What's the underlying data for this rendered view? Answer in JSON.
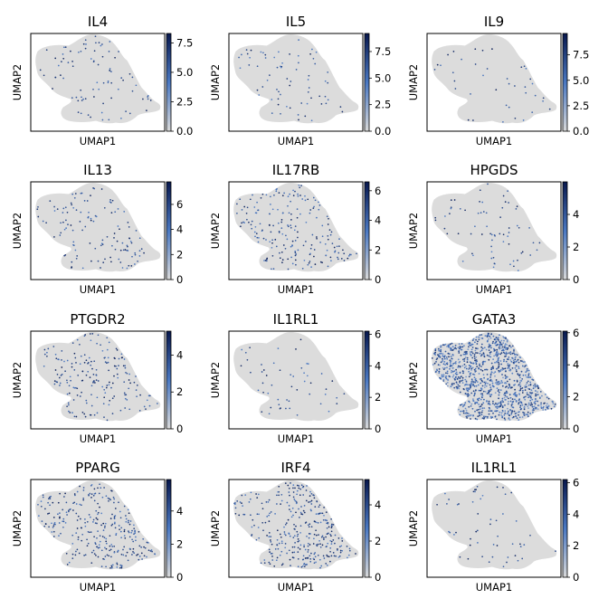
{
  "figure": {
    "background": "#ffffff",
    "colormap": {
      "low": "#d9d9d9",
      "mid": "#4a78c2",
      "high": "#07174d"
    },
    "base_color": "#dcdcdc"
  },
  "chart_data": [
    {
      "type": "scatter",
      "title": "IL4",
      "xlabel": "UMAP1",
      "ylabel": "UMAP2",
      "colorbar": {
        "ticks": [
          "0.0",
          "2.5",
          "5.0",
          "7.5"
        ],
        "tick_values": [
          0,
          2.5,
          5,
          7.5
        ],
        "max": 8.3
      },
      "expression_pattern": "sparse",
      "hotspot": "right-tip",
      "density": 0.45
    },
    {
      "type": "scatter",
      "title": "IL5",
      "xlabel": "UMAP1",
      "ylabel": "UMAP2",
      "colorbar": {
        "ticks": [
          "0.0",
          "2.5",
          "5.0",
          "7.5"
        ],
        "tick_values": [
          0,
          2.5,
          5,
          7.5
        ],
        "max": 9.2
      },
      "expression_pattern": "sparse",
      "hotspot": "right-tip",
      "density": 0.35
    },
    {
      "type": "scatter",
      "title": "IL9",
      "xlabel": "UMAP1",
      "ylabel": "UMAP2",
      "colorbar": {
        "ticks": [
          "0.0",
          "2.5",
          "5.0",
          "7.5"
        ],
        "tick_values": [
          0,
          2.5,
          5,
          7.5
        ],
        "max": 9.6
      },
      "expression_pattern": "sparse",
      "hotspot": "right-tip",
      "density": 0.2
    },
    {
      "type": "scatter",
      "title": "IL13",
      "xlabel": "UMAP1",
      "ylabel": "UMAP2",
      "colorbar": {
        "ticks": [
          "0",
          "2",
          "4",
          "6"
        ],
        "tick_values": [
          0,
          2,
          4,
          6
        ],
        "max": 7.8
      },
      "expression_pattern": "sparse",
      "hotspot": "right-tip",
      "density": 0.6
    },
    {
      "type": "scatter",
      "title": "IL17RB",
      "xlabel": "UMAP1",
      "ylabel": "UMAP2",
      "colorbar": {
        "ticks": [
          "0",
          "2",
          "4",
          "6"
        ],
        "tick_values": [
          0,
          2,
          4,
          6
        ],
        "max": 6.6
      },
      "expression_pattern": "sparse",
      "hotspot": "right-tip",
      "density": 0.8
    },
    {
      "type": "scatter",
      "title": "HPGDS",
      "xlabel": "UMAP1",
      "ylabel": "UMAP2",
      "colorbar": {
        "ticks": [
          "0",
          "2",
          "4"
        ],
        "tick_values": [
          0,
          2,
          4
        ],
        "max": 6.0
      },
      "expression_pattern": "sparse",
      "hotspot": "right-tip",
      "density": 0.3
    },
    {
      "type": "scatter",
      "title": "PTGDR2",
      "xlabel": "UMAP1",
      "ylabel": "UMAP2",
      "colorbar": {
        "ticks": [
          "0",
          "2",
          "4"
        ],
        "tick_values": [
          0,
          2,
          4
        ],
        "max": 5.3
      },
      "expression_pattern": "sparse",
      "hotspot": "right-tip",
      "density": 0.85
    },
    {
      "type": "scatter",
      "title": "IL1RL1",
      "xlabel": "UMAP1",
      "ylabel": "UMAP2",
      "colorbar": {
        "ticks": [
          "0",
          "2",
          "4",
          "6"
        ],
        "tick_values": [
          0,
          2,
          4,
          6
        ],
        "max": 6.2
      },
      "expression_pattern": "sparse",
      "hotspot": "right-tip",
      "density": 0.25
    },
    {
      "type": "scatter",
      "title": "GATA3",
      "xlabel": "UMAP1",
      "ylabel": "UMAP2",
      "colorbar": {
        "ticks": [
          "0",
          "2",
          "4",
          "6"
        ],
        "tick_values": [
          0,
          2,
          4,
          6
        ],
        "max": 6.1
      },
      "expression_pattern": "ubiquitous",
      "hotspot": "whole",
      "density": 1.0
    },
    {
      "type": "scatter",
      "title": "PPARG",
      "xlabel": "UMAP1",
      "ylabel": "UMAP2",
      "colorbar": {
        "ticks": [
          "0",
          "2",
          "4"
        ],
        "tick_values": [
          0,
          2,
          4
        ],
        "max": 5.9
      },
      "expression_pattern": "scattered",
      "hotspot": "whole",
      "density": 0.9
    },
    {
      "type": "scatter",
      "title": "IRF4",
      "xlabel": "UMAP1",
      "ylabel": "UMAP2",
      "colorbar": {
        "ticks": [
          "0",
          "2",
          "4"
        ],
        "tick_values": [
          0,
          2,
          4
        ],
        "max": 5.4
      },
      "expression_pattern": "scattered",
      "hotspot": "whole",
      "density": 1.0
    },
    {
      "type": "scatter",
      "title": "IL1RL1",
      "xlabel": "UMAP1",
      "ylabel": "UMAP2",
      "colorbar": {
        "ticks": [
          "0",
          "2",
          "4",
          "6"
        ],
        "tick_values": [
          0,
          2,
          4,
          6
        ],
        "max": 6.2
      },
      "expression_pattern": "sparse",
      "hotspot": "right-tip",
      "density": 0.25
    }
  ]
}
